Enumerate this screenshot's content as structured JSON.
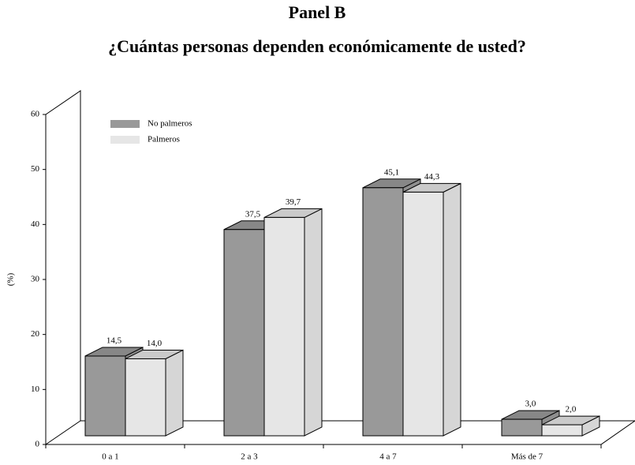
{
  "chart_data": {
    "type": "bar3d",
    "title": "Panel B",
    "subtitle": "¿Cuántas personas dependen económicamente de usted?",
    "ylabel": "(%)",
    "categories": [
      "0 a 1",
      "2 a 3",
      "4 a 7",
      "Más de 7"
    ],
    "series": [
      {
        "name": "No palmeros",
        "color": "#999999",
        "values": [
          14.5,
          37.5,
          45.1,
          3.0
        ],
        "value_labels": [
          "14,5",
          "37,5",
          "45,1",
          "3,0"
        ]
      },
      {
        "name": "Palmeros",
        "color": "#e6e6e6",
        "values": [
          14.0,
          39.7,
          44.3,
          2.0
        ],
        "value_labels": [
          "14,0",
          "39,7",
          "44,3",
          "2,0"
        ]
      }
    ],
    "ylim": [
      0,
      60
    ],
    "yticks": [
      0,
      10,
      20,
      30,
      40,
      50,
      60
    ],
    "grid": false,
    "legend": "upper left"
  }
}
